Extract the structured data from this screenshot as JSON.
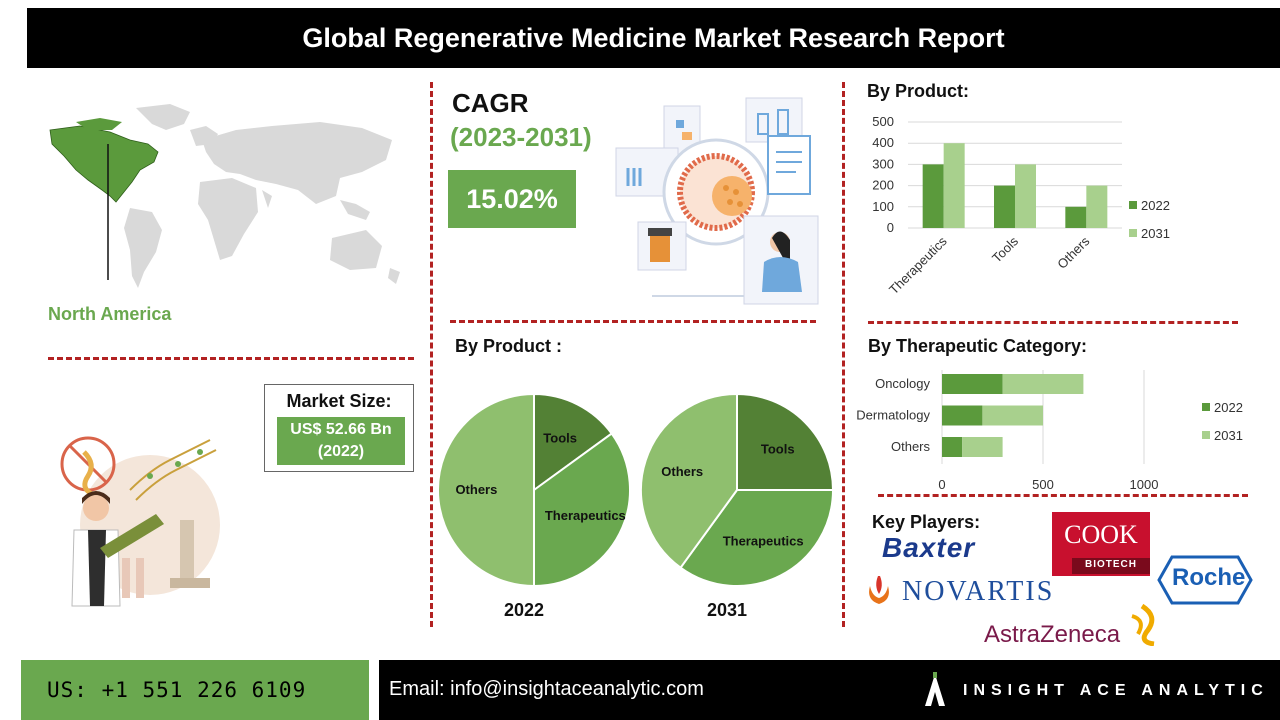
{
  "title": "Global Regenerative Medicine Market Research Report",
  "region": {
    "label": "North America"
  },
  "market_size": {
    "title": "Market Size:",
    "value": "US$ 52.66 Bn",
    "year": "(2022)"
  },
  "cagr": {
    "title": "CAGR",
    "period": "(2023-2031)",
    "value": "15.02%"
  },
  "sections": {
    "pie_title": "By Product :",
    "bar_title": "By Product:",
    "therapeutic_title": "By Therapeutic Category:",
    "key_players_title": "Key Players:"
  },
  "key_players": {
    "baxter": "Baxter",
    "cook": "COOK",
    "cook_sub": "BIOTECH",
    "novartis": "NOVARTIS",
    "roche": "Roche",
    "astrazeneca": "AstraZeneca"
  },
  "footer": {
    "phone": "US: +1 551 226 6109",
    "email": "Email: info@insightaceanalytic.com",
    "brand": "INSIGHT ACE ANALYTIC"
  },
  "colors": {
    "dark_green": "#5b9a3c",
    "mid_green": "#6aa84f",
    "light_green": "#a8d08d",
    "pie_others": "#8fbf6e",
    "pie_tools": "#538135",
    "pie_ther": "#6aa84f",
    "red_dash": "#b22222"
  },
  "chart_data": [
    {
      "type": "bar",
      "title": "By Product:",
      "categories": [
        "Therapeutics",
        "Tools",
        "Others"
      ],
      "series": [
        {
          "name": "2022",
          "values": [
            300,
            200,
            100
          ]
        },
        {
          "name": "2031",
          "values": [
            400,
            300,
            200
          ]
        }
      ],
      "ylim": [
        0,
        500
      ],
      "yticks": [
        "0",
        "100",
        "200",
        "300",
        "400",
        "500"
      ],
      "legend": "right",
      "grid": true
    },
    {
      "type": "pie",
      "title": "By Product :",
      "caption": "2022",
      "labels": [
        "Tools",
        "Therapeutics",
        "Others"
      ],
      "values": [
        15,
        35,
        50
      ]
    },
    {
      "type": "pie",
      "caption": "2031",
      "labels": [
        "Tools",
        "Therapeutics",
        "Others"
      ],
      "values": [
        25,
        35,
        40
      ]
    },
    {
      "type": "bar",
      "orientation": "horizontal",
      "stacked": true,
      "title": "By Therapeutic Category:",
      "categories": [
        "Oncology",
        "Dermatology",
        "Others"
      ],
      "series": [
        {
          "name": "2022",
          "values": [
            300,
            200,
            100
          ]
        },
        {
          "name": "2031",
          "values": [
            400,
            300,
            200
          ]
        }
      ],
      "xlim": [
        0,
        1000
      ],
      "xticks": [
        "0",
        "500",
        "1000"
      ],
      "legend": "right",
      "grid": true
    }
  ]
}
